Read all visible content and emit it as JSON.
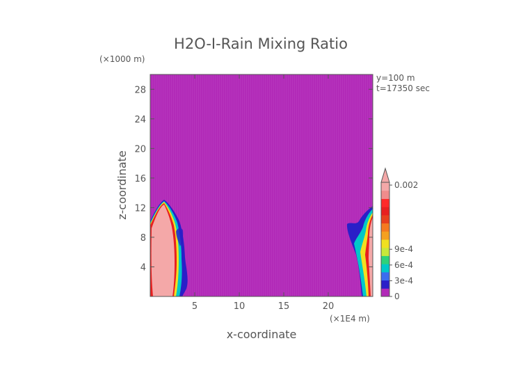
{
  "chart_data": {
    "type": "heatmap",
    "title": "H2O-I-Rain Mixing Ratio",
    "xlabel": "x-coordinate",
    "ylabel": "z-coordinate",
    "x_scale_note": "(×1E4 m)",
    "y_scale_note": "(×1000 m)",
    "annotations": [
      "y=100 m",
      "t=17350 sec"
    ],
    "xlim": [
      0,
      25
    ],
    "ylim": [
      0,
      30
    ],
    "x_ticks": [
      5,
      10,
      15,
      20
    ],
    "y_ticks": [
      4,
      8,
      12,
      16,
      20,
      24,
      28
    ],
    "background_value": 0,
    "background_color": "#b22ab8",
    "colorbar": {
      "labels": [
        "0",
        "3e-4",
        "6e-4",
        "9e-4",
        "0.002"
      ],
      "label_values": [
        0,
        0.0003,
        0.0006,
        0.0009,
        0.002
      ],
      "colors": [
        "#b22ab8",
        "#2a1fc8",
        "#3b6df0",
        "#00c8c8",
        "#2ed17a",
        "#c8e83a",
        "#f0e020",
        "#f5a020",
        "#f57a20",
        "#e8401e",
        "#e82020",
        "#ff2a2a",
        "#f08c8c",
        "#f4a8a8"
      ],
      "max_extend": true
    },
    "features": [
      {
        "name": "left-rain-shaft",
        "x_range": [
          0,
          4
        ],
        "z_top": 13,
        "peak_value": 0.002
      },
      {
        "name": "right-rain-shaft",
        "x_range": [
          21.5,
          25
        ],
        "z_top": 10.5,
        "peak_value": 0.002
      }
    ]
  }
}
